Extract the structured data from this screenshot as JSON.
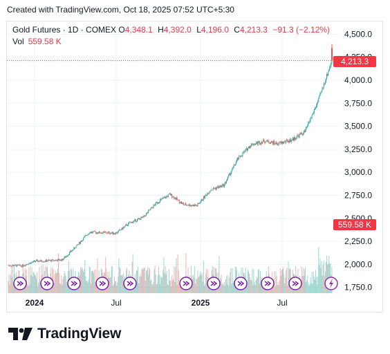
{
  "header": {
    "caption": "Created with TradingView.com, Oct 18, 2025 07:52 UTC+5:30"
  },
  "legend": {
    "symbol": "Gold Futures · 1D · COMEX",
    "open_label": "O",
    "open": "4,348.1",
    "high_label": "H",
    "high": "4,392.0",
    "low_label": "L",
    "low": "4,196.0",
    "close_label": "C",
    "close": "4,213.3",
    "change": "−91.3 (−2.12%)",
    "volume_label": "Vol",
    "volume": "559.58 K"
  },
  "price_axis": {
    "ticks": [
      "4,500.0",
      "4,250.0",
      "4,000.0",
      "3,750.0",
      "3,500.0",
      "3,250.0",
      "3,000.0",
      "2,750.0",
      "2,500.0",
      "2,250.0",
      "2,000.0",
      "1,750.0"
    ],
    "last_price_label": "4,213.3",
    "volume_label": "559.58 K"
  },
  "time_axis": {
    "labels": [
      "2024",
      "Jul",
      "2025",
      "Jul"
    ]
  },
  "logo": {
    "text": "TradingView"
  },
  "colors": {
    "up": "#26a69a",
    "down": "#ef5350",
    "last_price": "#f23645",
    "event_marker": "#7b1fa2"
  },
  "chart_data": {
    "type": "candlestick",
    "symbol": "Gold Futures",
    "interval": "1D",
    "exchange": "COMEX",
    "ylim": [
      1700,
      4500
    ],
    "last_price": 4213.3,
    "last_volume": "559.58 K",
    "x_labels": [
      "2024",
      "Jul",
      "2025",
      "Jul"
    ],
    "close_path": [
      {
        "date": "2023-10",
        "close": 1990
      },
      {
        "date": "2023-11",
        "close": 1985
      },
      {
        "date": "2023-12",
        "close": 2035
      },
      {
        "date": "2024-01",
        "close": 2040
      },
      {
        "date": "2024-02",
        "close": 2050
      },
      {
        "date": "2024-03",
        "close": 2190
      },
      {
        "date": "2024-04",
        "close": 2350
      },
      {
        "date": "2024-05",
        "close": 2345
      },
      {
        "date": "2024-06",
        "close": 2340
      },
      {
        "date": "2024-07",
        "close": 2450
      },
      {
        "date": "2024-08",
        "close": 2510
      },
      {
        "date": "2024-09",
        "close": 2670
      },
      {
        "date": "2024-10",
        "close": 2760
      },
      {
        "date": "2024-11",
        "close": 2650
      },
      {
        "date": "2024-12",
        "close": 2640
      },
      {
        "date": "2025-01",
        "close": 2810
      },
      {
        "date": "2025-02",
        "close": 2860
      },
      {
        "date": "2025-03",
        "close": 3140
      },
      {
        "date": "2025-04",
        "close": 3300
      },
      {
        "date": "2025-05",
        "close": 3340
      },
      {
        "date": "2025-06",
        "close": 3310
      },
      {
        "date": "2025-07",
        "close": 3350
      },
      {
        "date": "2025-08",
        "close": 3440
      },
      {
        "date": "2025-09",
        "close": 3780
      },
      {
        "date": "2025-10",
        "close": 4213.3
      }
    ]
  }
}
